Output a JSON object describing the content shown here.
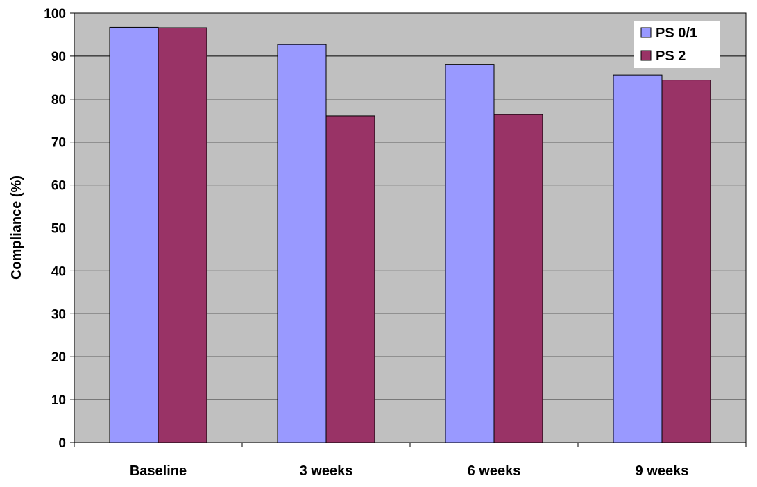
{
  "chart_data": {
    "type": "bar",
    "title": "",
    "xlabel": "",
    "ylabel": "Compliance (%)",
    "ylim": [
      0,
      100
    ],
    "yticks": [
      0,
      10,
      20,
      30,
      40,
      50,
      60,
      70,
      80,
      90,
      100
    ],
    "grid": true,
    "legend_position": "top-right",
    "categories": [
      "Baseline",
      "3 weeks",
      "6 weeks",
      "9 weeks"
    ],
    "series": [
      {
        "name": "PS 0/1",
        "color": "#9999ff",
        "values": [
          96.7,
          92.7,
          88.1,
          85.6
        ]
      },
      {
        "name": "PS 2",
        "color": "#993366",
        "values": [
          96.6,
          76.1,
          76.4,
          84.4
        ]
      }
    ],
    "plot_background": "#c0c0c0"
  }
}
